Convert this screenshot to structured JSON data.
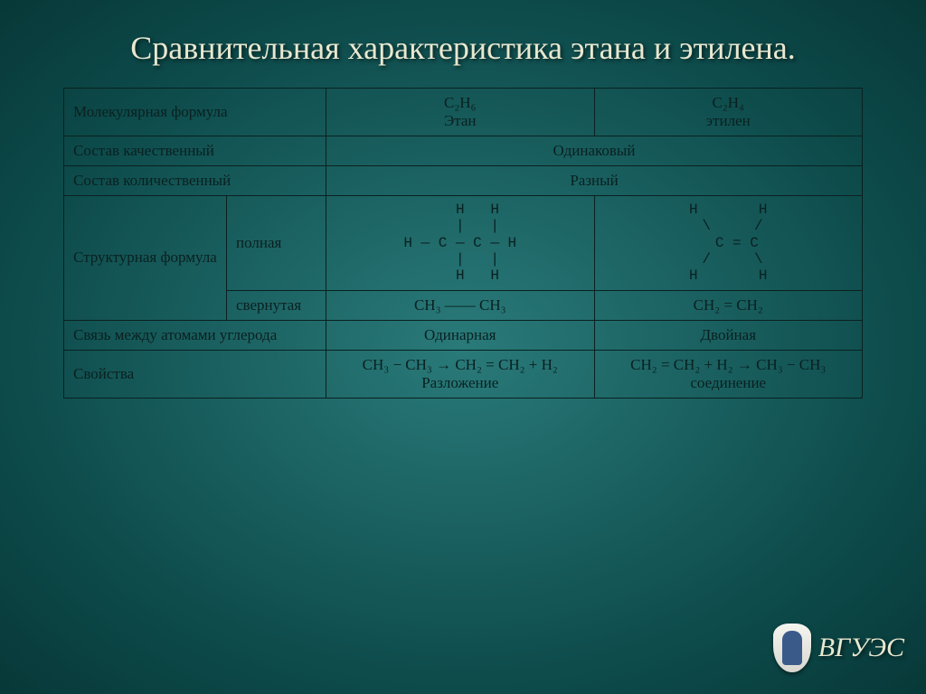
{
  "title": "Сравнительная характеристика этана и этилена.",
  "logo_text": "ВГУЭС",
  "rows": {
    "mol_label": "Молекулярная формула",
    "ethane_formula_top": "C₂H₆",
    "ethane_formula_bottom": "Этан",
    "ethylene_formula_top": "C₂H₄",
    "ethylene_formula_bottom": "этилен",
    "qual_label": "Состав качественный",
    "qual_value": "Одинаковый",
    "quant_label": "Состав количественный",
    "quant_value": "Разный",
    "struct_label": "Структурная формула",
    "struct_full_label": "полная",
    "struct_short_label": "свернутая",
    "ethane_full": "    H   H\n    |   |\nH — C — C — H\n    |   |\n    H   H",
    "ethylene_full": "H       H\n \\     /\n  C = C\n /     \\\nH       H",
    "ethane_short": "CH₃ —— CH₃",
    "ethylene_short": "CH₂ = CH₂",
    "bond_label": "Связь между атомами углерода",
    "bond_ethane": "Одинарная",
    "bond_ethylene": "Двойная",
    "props_label": "Свойства",
    "props_ethane_top": "CH₃ − CH₃ → CH₂ = CH₂ + H₂",
    "props_ethane_bottom": "Разложение",
    "props_ethylene_top": "CH₂ = CH₂ + H₂ → CH₃ − CH₃",
    "props_ethylene_bottom": "соединение"
  }
}
